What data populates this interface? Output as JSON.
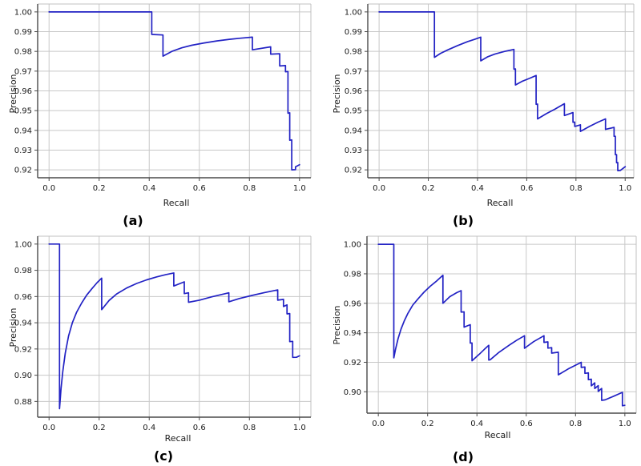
{
  "figure": {
    "background": "#ffffff",
    "line_color": "#2222c4",
    "grid_color": "#c8c8c8",
    "spine_color": "#4a4a4a",
    "light_spine_color": "#c0c0c0",
    "text_color": "#1a1a1a"
  },
  "chart_data": [
    {
      "id": "a",
      "type": "line",
      "caption": "(a)",
      "xlabel": "Recall",
      "ylabel": "Precision",
      "grid": true,
      "legend": null,
      "xlim": [
        -0.0455,
        1.0455
      ],
      "ylim": [
        0.916,
        1.004
      ],
      "xticks": [
        0.0,
        0.2,
        0.4,
        0.6,
        0.8,
        1.0
      ],
      "xtick_labels": [
        "0.0",
        "0.2",
        "0.4",
        "0.6",
        "0.8",
        "1.0"
      ],
      "yticks": [
        0.92,
        0.93,
        0.94,
        0.95,
        0.96,
        0.97,
        0.98,
        0.99,
        1.0
      ],
      "ytick_labels": [
        "0.92",
        "0.93",
        "0.94",
        "0.95",
        "0.96",
        "0.97",
        "0.98",
        "0.99",
        "1.00"
      ],
      "series": [
        {
          "name": "precision-recall-curve",
          "color": "#2222c4",
          "points": [
            [
              0.0,
              1.0
            ],
            [
              0.41,
              1.0
            ],
            [
              0.41,
              0.9886
            ],
            [
              0.455,
              0.9883
            ],
            [
              0.455,
              0.9776
            ],
            [
              0.49,
              0.98
            ],
            [
              0.53,
              0.9818
            ],
            [
              0.57,
              0.9831
            ],
            [
              0.62,
              0.9843
            ],
            [
              0.67,
              0.9853
            ],
            [
              0.72,
              0.9861
            ],
            [
              0.765,
              0.9867
            ],
            [
              0.812,
              0.9872
            ],
            [
              0.812,
              0.9808
            ],
            [
              0.885,
              0.9823
            ],
            [
              0.885,
              0.9786
            ],
            [
              0.921,
              0.9788
            ],
            [
              0.921,
              0.9726
            ],
            [
              0.944,
              0.9728
            ],
            [
              0.944,
              0.9697
            ],
            [
              0.954,
              0.9698
            ],
            [
              0.954,
              0.9487
            ],
            [
              0.961,
              0.9489
            ],
            [
              0.961,
              0.935
            ],
            [
              0.969,
              0.9352
            ],
            [
              0.969,
              0.92
            ],
            [
              0.984,
              0.9201
            ],
            [
              0.984,
              0.9215
            ],
            [
              1.0,
              0.9226
            ]
          ]
        }
      ]
    },
    {
      "id": "b",
      "type": "line",
      "caption": "(b)",
      "xlabel": "Recall",
      "ylabel": "Precision",
      "grid": true,
      "legend": null,
      "xlim": [
        -0.046,
        1.035
      ],
      "ylim": [
        0.916,
        1.004
      ],
      "xticks": [
        0.0,
        0.2,
        0.4,
        0.6,
        0.8,
        1.0
      ],
      "xtick_labels": [
        "0.0",
        "0.2",
        "0.4",
        "0.6",
        "0.8",
        "1.0"
      ],
      "yticks": [
        0.92,
        0.93,
        0.94,
        0.95,
        0.96,
        0.97,
        0.98,
        0.99,
        1.0
      ],
      "ytick_labels": [
        "0.92",
        "0.93",
        "0.94",
        "0.95",
        "0.96",
        "0.97",
        "0.98",
        "0.99",
        "1.00"
      ],
      "series": [
        {
          "name": "precision-recall-curve",
          "color": "#2222c4",
          "points": [
            [
              0.0,
              1.0
            ],
            [
              0.225,
              1.0
            ],
            [
              0.225,
              0.977
            ],
            [
              0.25,
              0.979
            ],
            [
              0.28,
              0.9808
            ],
            [
              0.32,
              0.983
            ],
            [
              0.36,
              0.985
            ],
            [
              0.39,
              0.9862
            ],
            [
              0.413,
              0.9872
            ],
            [
              0.413,
              0.9752
            ],
            [
              0.44,
              0.9772
            ],
            [
              0.47,
              0.9786
            ],
            [
              0.51,
              0.98
            ],
            [
              0.548,
              0.981
            ],
            [
              0.548,
              0.971
            ],
            [
              0.554,
              0.9711
            ],
            [
              0.554,
              0.963
            ],
            [
              0.58,
              0.9648
            ],
            [
              0.61,
              0.9663
            ],
            [
              0.638,
              0.9678
            ],
            [
              0.638,
              0.9532
            ],
            [
              0.644,
              0.9533
            ],
            [
              0.644,
              0.9458
            ],
            [
              0.68,
              0.9485
            ],
            [
              0.715,
              0.9508
            ],
            [
              0.753,
              0.9535
            ],
            [
              0.753,
              0.9475
            ],
            [
              0.788,
              0.949
            ],
            [
              0.788,
              0.9441
            ],
            [
              0.795,
              0.9442
            ],
            [
              0.795,
              0.942
            ],
            [
              0.818,
              0.9428
            ],
            [
              0.818,
              0.9395
            ],
            [
              0.855,
              0.942
            ],
            [
              0.89,
              0.9442
            ],
            [
              0.92,
              0.9458
            ],
            [
              0.92,
              0.9405
            ],
            [
              0.955,
              0.9415
            ],
            [
              0.955,
              0.937
            ],
            [
              0.96,
              0.937
            ],
            [
              0.96,
              0.9277
            ],
            [
              0.965,
              0.9277
            ],
            [
              0.965,
              0.9236
            ],
            [
              0.97,
              0.9237
            ],
            [
              0.97,
              0.9196
            ],
            [
              0.98,
              0.9197
            ],
            [
              1.0,
              0.9216
            ]
          ]
        }
      ]
    },
    {
      "id": "c",
      "type": "line",
      "caption": "(c)",
      "xlabel": "Recall",
      "ylabel": "Precision",
      "grid": true,
      "legend": null,
      "xlim": [
        -0.0455,
        1.0455
      ],
      "ylim": [
        0.868,
        1.006
      ],
      "xticks": [
        0.0,
        0.2,
        0.4,
        0.6,
        0.8,
        1.0
      ],
      "xtick_labels": [
        "0.0",
        "0.2",
        "0.4",
        "0.6",
        "0.8",
        "1.0"
      ],
      "yticks": [
        0.88,
        0.9,
        0.92,
        0.94,
        0.96,
        0.98,
        1.0
      ],
      "ytick_labels": [
        "0.88",
        "0.90",
        "0.92",
        "0.94",
        "0.96",
        "0.98",
        "1.00"
      ],
      "series": [
        {
          "name": "precision-recall-curve",
          "color": "#2222c4",
          "points": [
            [
              0.0,
              1.0
            ],
            [
              0.042,
              1.0
            ],
            [
              0.042,
              0.8745
            ],
            [
              0.048,
              0.89
            ],
            [
              0.055,
              0.903
            ],
            [
              0.065,
              0.917
            ],
            [
              0.078,
              0.93
            ],
            [
              0.093,
              0.94
            ],
            [
              0.11,
              0.948
            ],
            [
              0.13,
              0.955
            ],
            [
              0.15,
              0.961
            ],
            [
              0.172,
              0.9662
            ],
            [
              0.192,
              0.9706
            ],
            [
              0.21,
              0.974
            ],
            [
              0.21,
              0.95
            ],
            [
              0.24,
              0.957
            ],
            [
              0.27,
              0.962
            ],
            [
              0.31,
              0.9665
            ],
            [
              0.35,
              0.97
            ],
            [
              0.39,
              0.9727
            ],
            [
              0.43,
              0.975
            ],
            [
              0.465,
              0.9766
            ],
            [
              0.498,
              0.978
            ],
            [
              0.498,
              0.968
            ],
            [
              0.54,
              0.9712
            ],
            [
              0.54,
              0.9622
            ],
            [
              0.557,
              0.9628
            ],
            [
              0.557,
              0.9556
            ],
            [
              0.6,
              0.9572
            ],
            [
              0.65,
              0.9598
            ],
            [
              0.718,
              0.9628
            ],
            [
              0.718,
              0.956
            ],
            [
              0.76,
              0.9585
            ],
            [
              0.81,
              0.9608
            ],
            [
              0.86,
              0.963
            ],
            [
              0.913,
              0.965
            ],
            [
              0.913,
              0.9572
            ],
            [
              0.936,
              0.9578
            ],
            [
              0.936,
              0.9524
            ],
            [
              0.95,
              0.9536
            ],
            [
              0.95,
              0.9468
            ],
            [
              0.961,
              0.947
            ],
            [
              0.961,
              0.9256
            ],
            [
              0.973,
              0.9258
            ],
            [
              0.973,
              0.9136
            ],
            [
              0.988,
              0.9137
            ],
            [
              1.0,
              0.9148
            ]
          ]
        }
      ]
    },
    {
      "id": "d",
      "type": "line",
      "caption": "(d)",
      "xlabel": "Recall",
      "ylabel": "Precision",
      "grid": true,
      "legend": null,
      "xlim": [
        -0.046,
        1.046
      ],
      "ylim": [
        0.8855,
        1.0055
      ],
      "xticks": [
        0.0,
        0.2,
        0.4,
        0.6,
        0.8,
        1.0
      ],
      "xtick_labels": [
        "0.0",
        "0.2",
        "0.4",
        "0.6",
        "0.8",
        "1.0"
      ],
      "yticks": [
        0.9,
        0.92,
        0.94,
        0.96,
        0.98,
        1.0
      ],
      "ytick_labels": [
        "0.90",
        "0.92",
        "0.94",
        "0.96",
        "0.98",
        "1.00"
      ],
      "series": [
        {
          "name": "precision-recall-curve",
          "color": "#2222c4",
          "points": [
            [
              0.0,
              1.0
            ],
            [
              0.063,
              1.0
            ],
            [
              0.063,
              0.923
            ],
            [
              0.07,
              0.929
            ],
            [
              0.08,
              0.936
            ],
            [
              0.092,
              0.9425
            ],
            [
              0.105,
              0.948
            ],
            [
              0.12,
              0.9532
            ],
            [
              0.14,
              0.9588
            ],
            [
              0.162,
              0.9632
            ],
            [
              0.185,
              0.9675
            ],
            [
              0.21,
              0.9715
            ],
            [
              0.237,
              0.9752
            ],
            [
              0.262,
              0.979
            ],
            [
              0.262,
              0.96
            ],
            [
              0.29,
              0.9645
            ],
            [
              0.318,
              0.9672
            ],
            [
              0.336,
              0.9686
            ],
            [
              0.336,
              0.954
            ],
            [
              0.348,
              0.9542
            ],
            [
              0.348,
              0.9438
            ],
            [
              0.373,
              0.9455
            ],
            [
              0.373,
              0.933
            ],
            [
              0.38,
              0.9331
            ],
            [
              0.38,
              0.921
            ],
            [
              0.41,
              0.9255
            ],
            [
              0.43,
              0.9288
            ],
            [
              0.448,
              0.9315
            ],
            [
              0.448,
              0.9215
            ],
            [
              0.454,
              0.9217
            ],
            [
              0.49,
              0.9268
            ],
            [
              0.53,
              0.9315
            ],
            [
              0.562,
              0.935
            ],
            [
              0.593,
              0.938
            ],
            [
              0.593,
              0.9295
            ],
            [
              0.63,
              0.934
            ],
            [
              0.672,
              0.938
            ],
            [
              0.672,
              0.9335
            ],
            [
              0.688,
              0.9338
            ],
            [
              0.688,
              0.9296
            ],
            [
              0.703,
              0.9299
            ],
            [
              0.703,
              0.9262
            ],
            [
              0.73,
              0.9268
            ],
            [
              0.73,
              0.9115
            ],
            [
              0.77,
              0.9155
            ],
            [
              0.8,
              0.918
            ],
            [
              0.823,
              0.92
            ],
            [
              0.823,
              0.9165
            ],
            [
              0.838,
              0.9168
            ],
            [
              0.838,
              0.9125
            ],
            [
              0.852,
              0.9128
            ],
            [
              0.852,
              0.9082
            ],
            [
              0.864,
              0.9085
            ],
            [
              0.864,
              0.904
            ],
            [
              0.878,
              0.906
            ],
            [
              0.878,
              0.9022
            ],
            [
              0.892,
              0.9042
            ],
            [
              0.892,
              0.9002
            ],
            [
              0.906,
              0.9022
            ],
            [
              0.906,
              0.8942
            ],
            [
              0.92,
              0.8945
            ],
            [
              0.955,
              0.897
            ],
            [
              0.99,
              0.8996
            ],
            [
              0.99,
              0.8905
            ],
            [
              1.0,
              0.8908
            ]
          ]
        }
      ]
    }
  ]
}
